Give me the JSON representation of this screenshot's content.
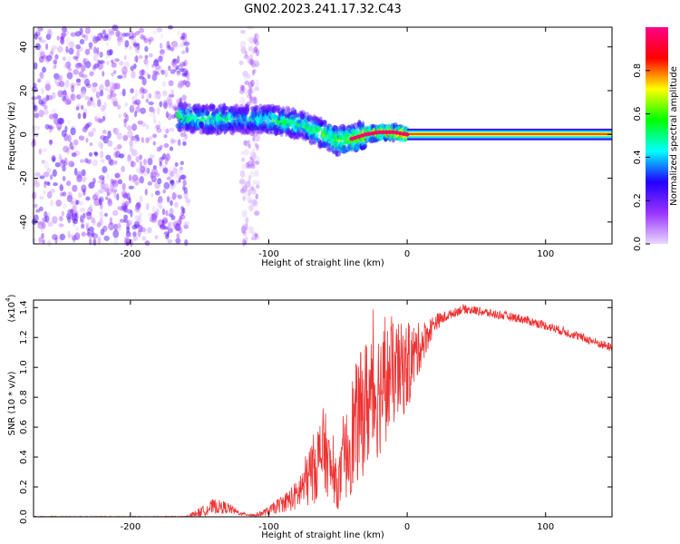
{
  "title": "GN02.2023.241.17.32.C43",
  "chart_data": [
    {
      "type": "heatmap",
      "name": "spectrogram",
      "xlabel": "Height of straight line (km)",
      "ylabel": "Frequency (Hz)",
      "xlim": [
        -270,
        148
      ],
      "ylim": [
        -50,
        49
      ],
      "xticks": [
        -200,
        -100,
        0,
        100
      ],
      "yticks": [
        -40,
        -20,
        0,
        20,
        40
      ],
      "colorbar": {
        "label": "Normalized spectral amplitude",
        "range": [
          0.0,
          1.0
        ],
        "ticks": [
          0.0,
          0.2,
          0.4,
          0.6,
          0.8
        ],
        "colormap": [
          "#e8d8ff",
          "#9933ff",
          "#2200ff",
          "#00ffff",
          "#00ff00",
          "#ffff00",
          "#ff0000",
          "#ff0088"
        ]
      },
      "noise_region": {
        "x": [
          -270,
          -158
        ]
      },
      "noise_strip": {
        "x": [
          -120,
          -108
        ]
      },
      "signal_track": [
        {
          "x": -165,
          "y": 8,
          "amp": 0.55
        },
        {
          "x": -150,
          "y": 7,
          "amp": 0.5
        },
        {
          "x": -135,
          "y": 7,
          "amp": 0.55
        },
        {
          "x": -120,
          "y": 7,
          "amp": 0.45
        },
        {
          "x": -105,
          "y": 7,
          "amp": 0.5
        },
        {
          "x": -90,
          "y": 6,
          "amp": 0.55
        },
        {
          "x": -75,
          "y": 4,
          "amp": 0.55
        },
        {
          "x": -60,
          "y": 0,
          "amp": 0.6
        },
        {
          "x": -50,
          "y": -3,
          "amp": 0.65
        },
        {
          "x": -40,
          "y": -2,
          "amp": 0.7
        },
        {
          "x": -30,
          "y": 0,
          "amp": 0.75
        },
        {
          "x": -20,
          "y": 1,
          "amp": 0.8
        },
        {
          "x": -10,
          "y": 1,
          "amp": 0.85
        },
        {
          "x": 0,
          "y": 0,
          "amp": 0.9
        },
        {
          "x": 148,
          "y": 0,
          "amp": 0.95
        }
      ]
    },
    {
      "type": "line",
      "name": "snr",
      "xlabel": "Height of straight line (km)",
      "ylabel": "SNR (10 * v/v)",
      "yscale_label": "(x10",
      "yscale_exp": "4",
      "xlim": [
        -270,
        148
      ],
      "ylim": [
        0.0,
        1.45
      ],
      "xticks": [
        -200,
        -100,
        0,
        100
      ],
      "yticks": [
        0.0,
        0.2,
        0.4,
        0.6,
        0.8,
        1.0,
        1.2,
        1.4
      ],
      "color": "#ee3333",
      "envelope": {
        "x": [
          -270,
          -160,
          -150,
          -140,
          -130,
          -120,
          -110,
          -100,
          -90,
          -80,
          -70,
          -60,
          -55,
          -50,
          -40,
          -30,
          -20,
          -10,
          0,
          10,
          20,
          30,
          40,
          50,
          60,
          80,
          100,
          120,
          148
        ],
        "y": [
          0.0,
          0.0,
          0.03,
          0.07,
          0.06,
          0.02,
          0.01,
          0.04,
          0.09,
          0.14,
          0.28,
          0.45,
          0.3,
          0.2,
          0.55,
          0.75,
          0.85,
          0.95,
          1.0,
          1.15,
          1.3,
          1.35,
          1.39,
          1.38,
          1.36,
          1.33,
          1.28,
          1.22,
          1.13
        ],
        "noise": [
          0.004,
          0.004,
          0.03,
          0.05,
          0.04,
          0.01,
          0.01,
          0.03,
          0.06,
          0.1,
          0.22,
          0.3,
          0.18,
          0.15,
          0.4,
          0.45,
          0.45,
          0.35,
          0.3,
          0.15,
          0.06,
          0.03,
          0.03,
          0.03,
          0.03,
          0.03,
          0.03,
          0.03,
          0.03
        ]
      }
    }
  ]
}
